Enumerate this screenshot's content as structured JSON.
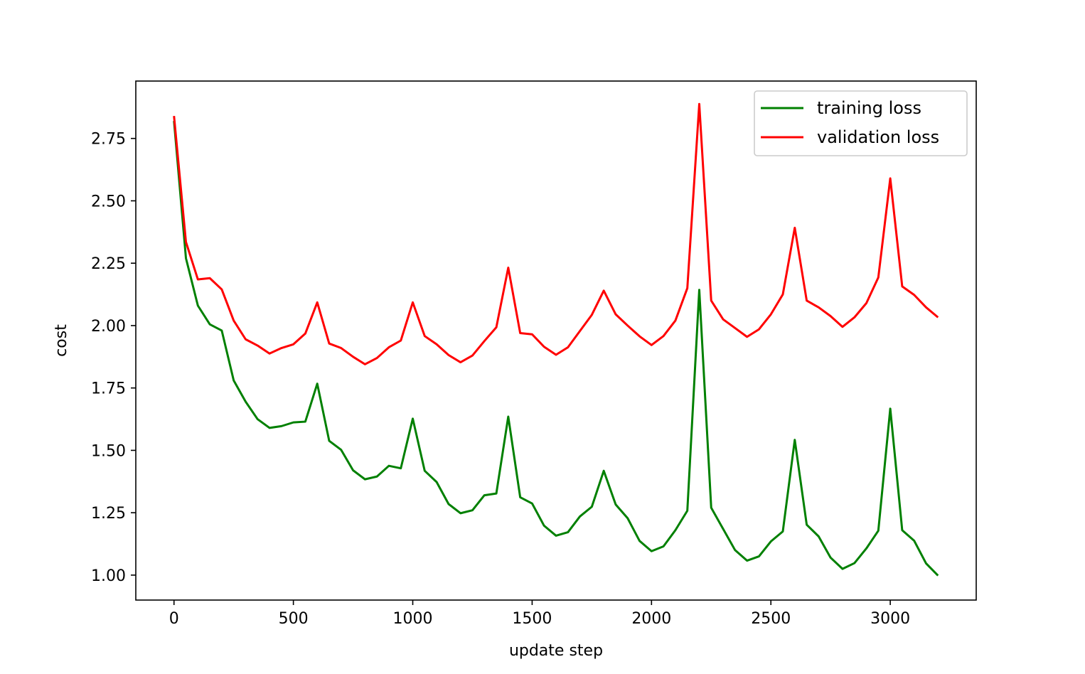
{
  "chart_data": {
    "type": "line",
    "title": "",
    "xlabel": "update step",
    "ylabel": "cost",
    "xlim": [
      -160,
      3360
    ],
    "ylim": [
      0.9,
      2.98
    ],
    "x_ticks": [
      0,
      500,
      1000,
      1500,
      2000,
      2500,
      3000
    ],
    "x_tick_labels": [
      "0",
      "500",
      "1000",
      "1500",
      "2000",
      "2500",
      "3000"
    ],
    "y_ticks": [
      1.0,
      1.25,
      1.5,
      1.75,
      2.0,
      2.25,
      2.5,
      2.75
    ],
    "y_tick_labels": [
      "1.00",
      "1.25",
      "1.50",
      "1.75",
      "2.00",
      "2.25",
      "2.50",
      "2.75"
    ],
    "grid": false,
    "legend_position": "top-right",
    "x": [
      0,
      50,
      100,
      150,
      200,
      250,
      300,
      350,
      400,
      450,
      500,
      550,
      600,
      650,
      700,
      750,
      800,
      850,
      900,
      950,
      1000,
      1050,
      1100,
      1150,
      1200,
      1250,
      1300,
      1350,
      1400,
      1450,
      1500,
      1550,
      1600,
      1650,
      1700,
      1750,
      1800,
      1850,
      1900,
      1950,
      2000,
      2050,
      2100,
      2150,
      2200,
      2250,
      2300,
      2350,
      2400,
      2450,
      2500,
      2550,
      2600,
      2650,
      2700,
      2750,
      2800,
      2850,
      2900,
      2950,
      3000,
      3050,
      3100,
      3150,
      3200
    ],
    "series": [
      {
        "name": "training loss",
        "color": "#008000",
        "values": [
          2.82,
          2.27,
          2.08,
          2.005,
          1.98,
          1.78,
          1.695,
          1.625,
          1.59,
          1.597,
          1.612,
          1.615,
          1.767,
          1.538,
          1.502,
          1.42,
          1.384,
          1.395,
          1.438,
          1.428,
          1.627,
          1.418,
          1.373,
          1.285,
          1.248,
          1.26,
          1.32,
          1.327,
          1.635,
          1.312,
          1.287,
          1.198,
          1.158,
          1.172,
          1.235,
          1.274,
          1.418,
          1.283,
          1.228,
          1.137,
          1.096,
          1.115,
          1.18,
          1.258,
          2.143,
          1.27,
          1.185,
          1.1,
          1.058,
          1.075,
          1.135,
          1.175,
          1.542,
          1.202,
          1.155,
          1.07,
          1.025,
          1.048,
          1.107,
          1.178,
          1.667,
          1.18,
          1.138,
          1.047,
          0.998
        ]
      },
      {
        "name": "validation loss",
        "color": "#ff0000",
        "values": [
          2.84,
          2.335,
          2.185,
          2.19,
          2.145,
          2.02,
          1.945,
          1.92,
          1.888,
          1.91,
          1.925,
          1.968,
          2.093,
          1.928,
          1.91,
          1.875,
          1.845,
          1.87,
          1.913,
          1.94,
          2.093,
          1.958,
          1.925,
          1.882,
          1.853,
          1.88,
          1.938,
          1.993,
          2.232,
          1.97,
          1.965,
          1.915,
          1.883,
          1.913,
          1.978,
          2.043,
          2.14,
          2.045,
          2.0,
          1.957,
          1.922,
          1.958,
          2.02,
          2.15,
          2.888,
          2.1,
          2.025,
          1.99,
          1.955,
          1.985,
          2.045,
          2.125,
          2.392,
          2.1,
          2.073,
          2.038,
          1.995,
          2.033,
          2.09,
          2.193,
          2.59,
          2.157,
          2.123,
          2.073,
          2.033
        ]
      }
    ]
  }
}
